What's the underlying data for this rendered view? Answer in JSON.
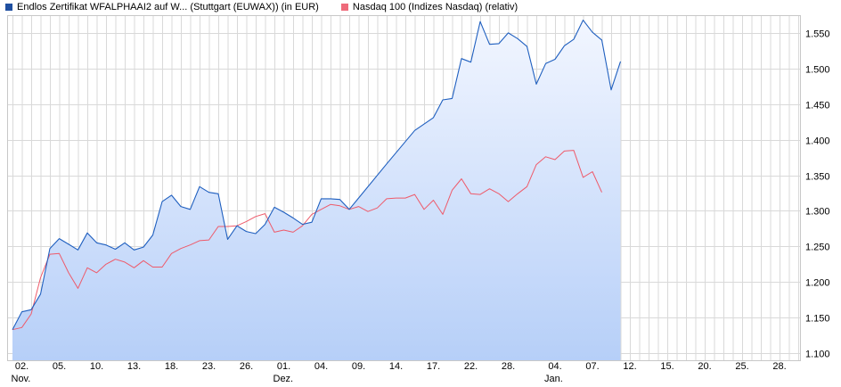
{
  "legend": {
    "series1": "Endlos Zertifikat WFALPHAAI2 auf W... (Stuttgart (EUWAX)) (in EUR)",
    "series2": "Nasdaq 100 (Indizes Nasdaq) (relativ)"
  },
  "colors": {
    "series1_line": "#1f5fbf",
    "series1_swatch": "#1f4fa0",
    "series2_line": "#ee5a6a",
    "series2_swatch": "#ee6b7b",
    "grid": "#d9d9d9",
    "fill_top": "#f2f6ff",
    "fill_bottom": "#b6cff8"
  },
  "chart_data": {
    "type": "line",
    "ylim": [
      1.09,
      1.575
    ],
    "y_ticks": [
      {
        "value": 1.1,
        "label": "1.100"
      },
      {
        "value": 1.15,
        "label": "1.150"
      },
      {
        "value": 1.2,
        "label": "1.200"
      },
      {
        "value": 1.25,
        "label": "1.250"
      },
      {
        "value": 1.3,
        "label": "1.300"
      },
      {
        "value": 1.35,
        "label": "1.350"
      },
      {
        "value": 1.4,
        "label": "1.400"
      },
      {
        "value": 1.45,
        "label": "1.450"
      },
      {
        "value": 1.5,
        "label": "1.500"
      },
      {
        "value": 1.55,
        "label": "1.550"
      }
    ],
    "x_ticks": [
      {
        "label": "02.",
        "month": "Nov."
      },
      {
        "label": "05.",
        "month": ""
      },
      {
        "label": "10.",
        "month": ""
      },
      {
        "label": "13.",
        "month": ""
      },
      {
        "label": "18.",
        "month": ""
      },
      {
        "label": "23.",
        "month": ""
      },
      {
        "label": "26.",
        "month": ""
      },
      {
        "label": "01.",
        "month": "Dez."
      },
      {
        "label": "04.",
        "month": ""
      },
      {
        "label": "09.",
        "month": ""
      },
      {
        "label": "14.",
        "month": ""
      },
      {
        "label": "17.",
        "month": ""
      },
      {
        "label": "22.",
        "month": ""
      },
      {
        "label": "28.",
        "month": ""
      },
      {
        "label": "04.",
        "month": "Jan."
      },
      {
        "label": "07.",
        "month": ""
      },
      {
        "label": "12.",
        "month": ""
      },
      {
        "label": "15.",
        "month": ""
      },
      {
        "label": "20.",
        "month": ""
      },
      {
        "label": "25.",
        "month": ""
      },
      {
        "label": "28.",
        "month": ""
      }
    ],
    "x_tick_index": [
      1,
      5,
      9,
      13,
      17,
      21,
      25,
      29,
      33,
      37,
      41,
      45,
      49,
      53,
      58,
      62,
      66,
      70,
      74,
      78,
      82
    ],
    "x_count": 85,
    "series": [
      {
        "points": [
          [
            0,
            1.133
          ],
          [
            1,
            1.158
          ],
          [
            2,
            1.161
          ],
          [
            3,
            1.183
          ],
          [
            4,
            1.247
          ],
          [
            5,
            1.261
          ],
          [
            6,
            1.253
          ],
          [
            7,
            1.245
          ],
          [
            8,
            1.269
          ],
          [
            9,
            1.255
          ],
          [
            10,
            1.252
          ],
          [
            11,
            1.246
          ],
          [
            12,
            1.255
          ],
          [
            13,
            1.245
          ],
          [
            14,
            1.249
          ],
          [
            15,
            1.266
          ],
          [
            16,
            1.313
          ],
          [
            17,
            1.322
          ],
          [
            18,
            1.306
          ],
          [
            19,
            1.302
          ],
          [
            20,
            1.334
          ],
          [
            21,
            1.326
          ],
          [
            22,
            1.324
          ],
          [
            23,
            1.26
          ],
          [
            24,
            1.279
          ],
          [
            25,
            1.271
          ],
          [
            26,
            1.268
          ],
          [
            27,
            1.281
          ],
          [
            28,
            1.305
          ],
          [
            29,
            1.298
          ],
          [
            30,
            1.29
          ],
          [
            31,
            1.281
          ],
          [
            32,
            1.284
          ],
          [
            33,
            1.317
          ],
          [
            34,
            1.317
          ],
          [
            35,
            1.316
          ],
          [
            36,
            1.302
          ],
          [
            37,
            1.318
          ],
          [
            40,
            1.366
          ],
          [
            43,
            1.413
          ],
          [
            45,
            1.431
          ],
          [
            46,
            1.456
          ],
          [
            47,
            1.458
          ],
          [
            48,
            1.514
          ],
          [
            49,
            1.509
          ],
          [
            50,
            1.566
          ],
          [
            51,
            1.534
          ],
          [
            52,
            1.535
          ],
          [
            53,
            1.55
          ],
          [
            54,
            1.542
          ],
          [
            55,
            1.531
          ],
          [
            56,
            1.478
          ],
          [
            57,
            1.507
          ],
          [
            58,
            1.513
          ],
          [
            59,
            1.532
          ],
          [
            60,
            1.541
          ],
          [
            61,
            1.568
          ],
          [
            62,
            1.551
          ],
          [
            63,
            1.54
          ],
          [
            64,
            1.47
          ],
          [
            65,
            1.51
          ]
        ]
      },
      {
        "points": [
          [
            0,
            1.133
          ],
          [
            1,
            1.136
          ],
          [
            2,
            1.155
          ],
          [
            3,
            1.206
          ],
          [
            4,
            1.239
          ],
          [
            5,
            1.24
          ],
          [
            6,
            1.213
          ],
          [
            7,
            1.191
          ],
          [
            8,
            1.22
          ],
          [
            9,
            1.213
          ],
          [
            10,
            1.225
          ],
          [
            11,
            1.232
          ],
          [
            12,
            1.228
          ],
          [
            13,
            1.22
          ],
          [
            14,
            1.23
          ],
          [
            15,
            1.221
          ],
          [
            16,
            1.221
          ],
          [
            17,
            1.24
          ],
          [
            18,
            1.247
          ],
          [
            19,
            1.252
          ],
          [
            20,
            1.258
          ],
          [
            21,
            1.259
          ],
          [
            22,
            1.278
          ],
          [
            23,
            1.278
          ],
          [
            24,
            1.279
          ],
          [
            25,
            1.285
          ],
          [
            26,
            1.292
          ],
          [
            27,
            1.296
          ],
          [
            28,
            1.27
          ],
          [
            29,
            1.273
          ],
          [
            30,
            1.27
          ],
          [
            31,
            1.279
          ],
          [
            32,
            1.295
          ],
          [
            33,
            1.302
          ],
          [
            34,
            1.309
          ],
          [
            35,
            1.307
          ],
          [
            36,
            1.302
          ],
          [
            37,
            1.306
          ],
          [
            38,
            1.299
          ],
          [
            39,
            1.304
          ],
          [
            40,
            1.317
          ],
          [
            41,
            1.318
          ],
          [
            42,
            1.318
          ],
          [
            43,
            1.323
          ],
          [
            44,
            1.302
          ],
          [
            45,
            1.315
          ],
          [
            46,
            1.295
          ],
          [
            47,
            1.329
          ],
          [
            48,
            1.345
          ],
          [
            49,
            1.324
          ],
          [
            50,
            1.323
          ],
          [
            51,
            1.331
          ],
          [
            52,
            1.324
          ],
          [
            53,
            1.313
          ],
          [
            54,
            1.324
          ],
          [
            55,
            1.334
          ],
          [
            56,
            1.365
          ],
          [
            57,
            1.376
          ],
          [
            58,
            1.372
          ],
          [
            59,
            1.384
          ],
          [
            60,
            1.385
          ],
          [
            61,
            1.347
          ],
          [
            62,
            1.355
          ],
          [
            63,
            1.326
          ]
        ]
      }
    ]
  }
}
